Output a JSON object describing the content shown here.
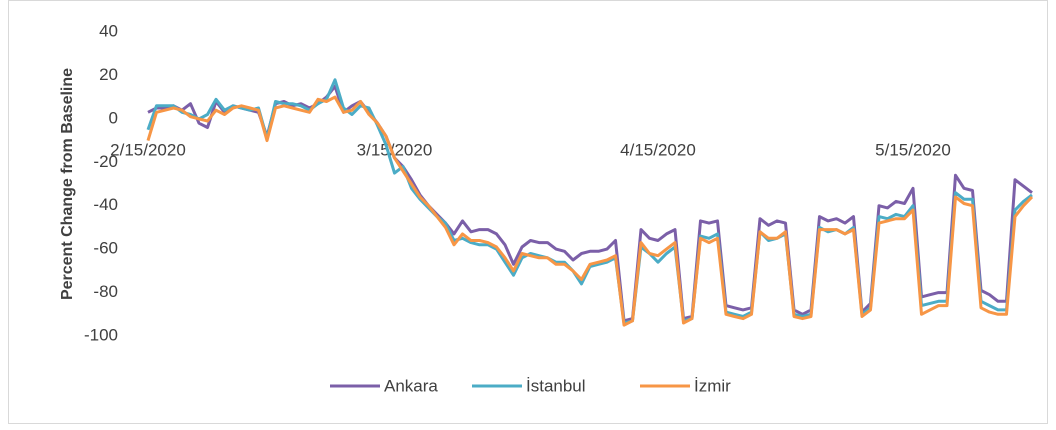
{
  "chart_data": {
    "type": "line",
    "ylabel": "Percent Change from Baseline",
    "categories": [
      "2/15/2020",
      null,
      null,
      null,
      null,
      null,
      null,
      null,
      null,
      null,
      null,
      null,
      null,
      null,
      null,
      null,
      null,
      null,
      null,
      null,
      null,
      null,
      null,
      null,
      null,
      null,
      null,
      null,
      null,
      "3/15/2020",
      null,
      null,
      null,
      null,
      null,
      null,
      null,
      null,
      null,
      null,
      null,
      null,
      null,
      null,
      null,
      null,
      null,
      null,
      null,
      null,
      null,
      null,
      null,
      null,
      null,
      null,
      null,
      null,
      null,
      null,
      "4/15/2020",
      null,
      null,
      null,
      null,
      null,
      null,
      null,
      null,
      null,
      null,
      null,
      null,
      null,
      null,
      null,
      null,
      null,
      null,
      null,
      null,
      null,
      null,
      null,
      null,
      null,
      null,
      null,
      null,
      null,
      "5/15/2020",
      null,
      null,
      null,
      null,
      null,
      null,
      null,
      null,
      null,
      null,
      null,
      null,
      null,
      null
    ],
    "series": [
      {
        "name": "Ankara",
        "color": "#7b5fa8",
        "values": [
          3,
          5,
          5,
          6,
          4,
          7,
          -2,
          -4,
          8,
          3,
          6,
          5,
          4,
          3,
          -8,
          7,
          8,
          6,
          7,
          5,
          7,
          10,
          15,
          3,
          6,
          8,
          3,
          -2,
          -8,
          -18,
          -22,
          -28,
          -35,
          -40,
          -44,
          -48,
          -53,
          -47,
          -52,
          -51,
          -51,
          -53,
          -58,
          -67,
          -59,
          -56,
          -57,
          -57,
          -60,
          -61,
          -65,
          -62,
          -61,
          -61,
          -60,
          -56,
          -93,
          -92,
          -51,
          -55,
          -56,
          -53,
          -51,
          -92,
          -91,
          -47,
          -48,
          -47,
          -86,
          -87,
          -88,
          -87,
          -46,
          -49,
          -47,
          -48,
          -88,
          -90,
          -88,
          -45,
          -47,
          -46,
          -48,
          -45,
          -89,
          -85,
          -40,
          -41,
          -38,
          -39,
          -32,
          -82,
          -81,
          -80,
          -80,
          -26,
          -32,
          -33,
          -79,
          -81,
          -84,
          -84,
          -28,
          -31,
          -34
        ]
      },
      {
        "name": "İstanbul",
        "color": "#4bacc6",
        "values": [
          -5,
          6,
          6,
          6,
          3,
          2,
          0,
          2,
          9,
          4,
          6,
          5,
          4,
          5,
          -9,
          8,
          7,
          7,
          6,
          4,
          7,
          9,
          18,
          5,
          2,
          6,
          5,
          -3,
          -12,
          -25,
          -22,
          -32,
          -37,
          -41,
          -45,
          -48,
          -56,
          -55,
          -57,
          -58,
          -58,
          -60,
          -66,
          -72,
          -64,
          -62,
          -63,
          -64,
          -66,
          -66,
          -70,
          -76,
          -68,
          -67,
          -66,
          -64,
          -94,
          -93,
          -59,
          -62,
          -66,
          -62,
          -59,
          -93,
          -92,
          -54,
          -55,
          -53,
          -89,
          -90,
          -91,
          -89,
          -52,
          -56,
          -55,
          -53,
          -90,
          -91,
          -90,
          -50,
          -52,
          -51,
          -53,
          -50,
          -90,
          -87,
          -45,
          -46,
          -44,
          -45,
          -40,
          -86,
          -85,
          -84,
          -84,
          -34,
          -37,
          -37,
          -84,
          -86,
          -88,
          -88,
          -42,
          -38,
          -35
        ]
      },
      {
        "name": "İzmir",
        "color": "#f79646",
        "values": [
          -10,
          3,
          4,
          5,
          4,
          1,
          0,
          -1,
          4,
          2,
          5,
          6,
          5,
          4,
          -10,
          5,
          6,
          5,
          4,
          3,
          9,
          8,
          10,
          3,
          4,
          8,
          2,
          -2,
          -8,
          -18,
          -24,
          -30,
          -36,
          -40,
          -45,
          -50,
          -58,
          -53,
          -56,
          -56,
          -57,
          -59,
          -64,
          -70,
          -62,
          -63,
          -64,
          -64,
          -67,
          -67,
          -70,
          -74,
          -67,
          -66,
          -65,
          -63,
          -95,
          -93,
          -57,
          -62,
          -63,
          -60,
          -57,
          -94,
          -92,
          -55,
          -57,
          -55,
          -90,
          -91,
          -92,
          -90,
          -52,
          -55,
          -55,
          -52,
          -91,
          -92,
          -91,
          -51,
          -51,
          -51,
          -53,
          -51,
          -91,
          -88,
          -48,
          -47,
          -46,
          -46,
          -42,
          -90,
          -88,
          -86,
          -86,
          -36,
          -39,
          -40,
          -87,
          -89,
          -90,
          -90,
          -45,
          -40,
          -36
        ]
      }
    ],
    "ylim": [
      -100,
      40
    ],
    "yticks": [
      -100,
      -80,
      -60,
      -40,
      -20,
      0,
      20,
      40
    ],
    "legend": "bottom"
  }
}
